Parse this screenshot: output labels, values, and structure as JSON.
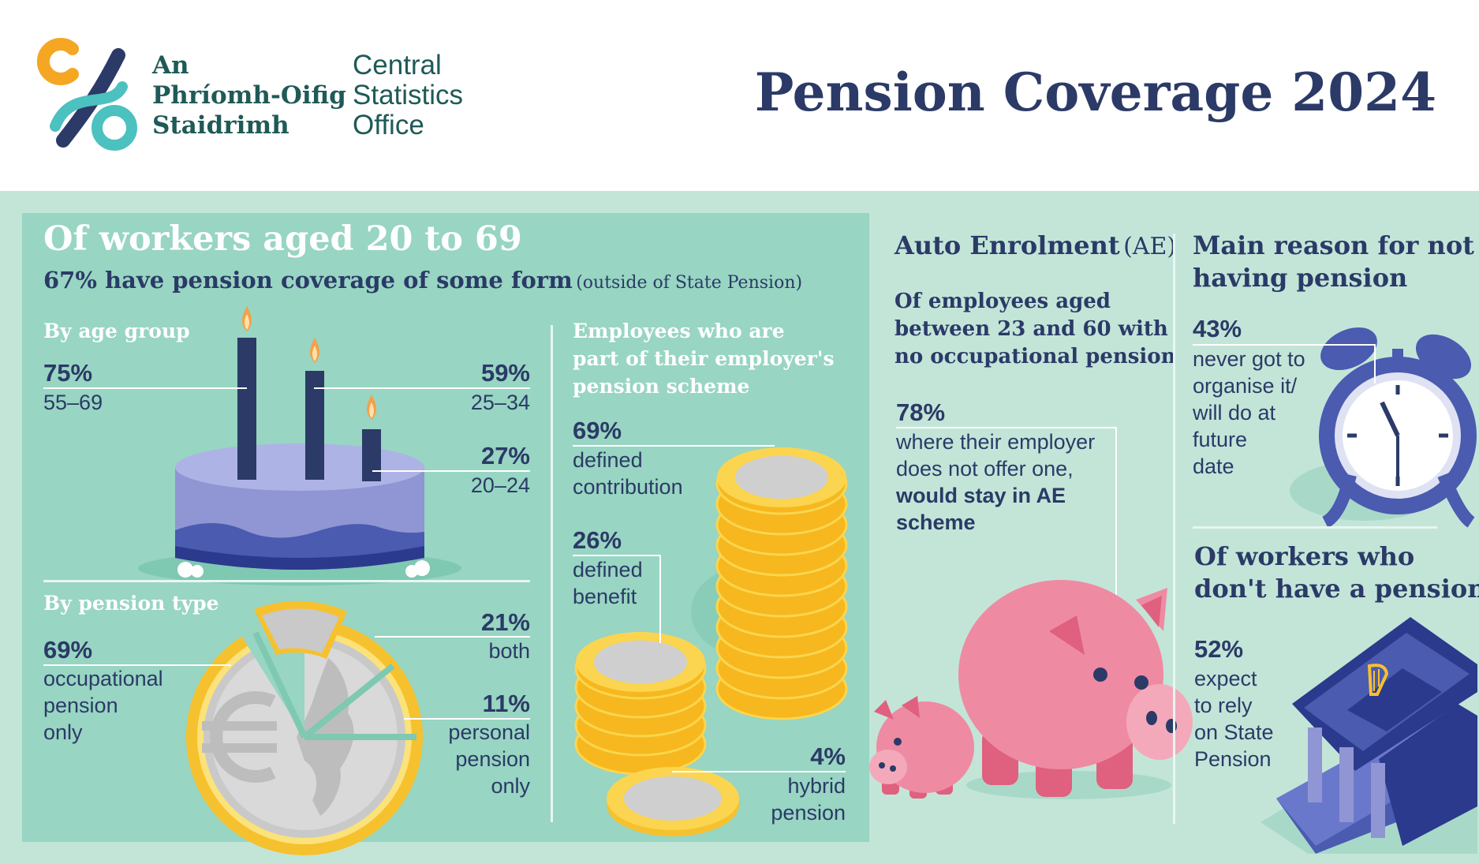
{
  "header": {
    "logo_irish_lines": [
      "An",
      "Phríomh-Oifig",
      "Staidrimh"
    ],
    "logo_english_lines": [
      "Central",
      "Statistics",
      "Office"
    ],
    "title": "Pension Coverage 2024"
  },
  "workers": {
    "heading": "Of workers aged 20 to 69",
    "subheading": "67% have pension coverage of some form",
    "subheading_note": "(outside of State Pension)"
  },
  "age_group": {
    "heading": "By age group",
    "items": [
      {
        "value": "75%",
        "label": "55–69"
      },
      {
        "value": "59%",
        "label": "25–34"
      },
      {
        "value": "27%",
        "label": "20–24"
      }
    ]
  },
  "pension_type": {
    "heading": "By pension type",
    "items": [
      {
        "value": "69%",
        "label_lines": [
          "occupational",
          "pension",
          "only"
        ]
      },
      {
        "value": "21%",
        "label_lines": [
          "both"
        ]
      },
      {
        "value": "11%",
        "label_lines": [
          "personal",
          "pension",
          "only"
        ]
      }
    ]
  },
  "employer_scheme": {
    "heading_lines": [
      "Employees who are",
      "part of their employer's",
      "pension scheme"
    ],
    "items": [
      {
        "value": "69%",
        "label_lines": [
          "defined",
          "contribution"
        ]
      },
      {
        "value": "26%",
        "label_lines": [
          "defined",
          "benefit"
        ]
      },
      {
        "value": "4%",
        "label_lines": [
          "hybrid",
          "pension"
        ]
      }
    ]
  },
  "auto_enrolment": {
    "heading": "Auto Enrolment",
    "heading_abbr": "(AE)",
    "sub_lines": [
      "Of employees aged",
      "between 23 and 60 with",
      "no occupational pension"
    ],
    "value": "78%",
    "text_lines": [
      "where their employer",
      "does not offer one,"
    ],
    "text_bold_lines": [
      "would stay in AE",
      "scheme"
    ]
  },
  "main_reason": {
    "heading_lines": [
      "Main reason for not",
      "having pension"
    ],
    "value": "43%",
    "label_lines": [
      "never got to",
      "organise it/",
      "will do at",
      "future",
      "date"
    ]
  },
  "no_pension": {
    "heading_lines": [
      "Of workers who",
      "don't have a pension"
    ],
    "value": "52%",
    "label_lines": [
      "expect",
      "to rely",
      "on State",
      "Pension"
    ]
  },
  "colors": {
    "navy": "#2b3a67",
    "teal_dark": "#1f5a57",
    "panel_green": "#98d5c2",
    "bg_green": "#c3e5d8",
    "coin_gold": "#f6c12e",
    "pig_pink": "#ef8aa3",
    "cake_purple": "#8f96d3"
  },
  "icons": [
    "candle-icon",
    "cake-icon",
    "euro-coin-icon",
    "coin-stack-icon",
    "piggy-bank-icon",
    "alarm-clock-icon",
    "state-building-icon",
    "harp-icon"
  ]
}
